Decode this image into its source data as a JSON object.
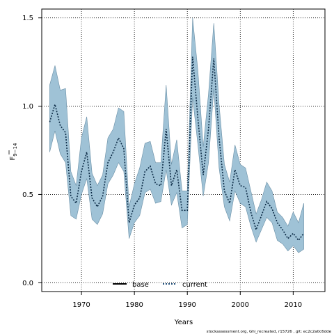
{
  "chart_data": {
    "type": "line",
    "xlabel": "Years",
    "ylabel": "F",
    "ylabel_sub": "9−14",
    "xlim": [
      1962.5,
      2016
    ],
    "ylim": [
      -0.05,
      1.55
    ],
    "xticks": [
      1970,
      1980,
      1990,
      2000,
      2010
    ],
    "yticks": [
      0.0,
      0.5,
      1.0,
      1.5
    ],
    "ytick_labels": [
      "0.0",
      "0.5",
      "1.0",
      "1.5"
    ],
    "grid": true,
    "legend_placement": "bottom-center",
    "x": [
      1964,
      1965,
      1966,
      1967,
      1968,
      1969,
      1970,
      1971,
      1972,
      1973,
      1974,
      1975,
      1976,
      1977,
      1978,
      1979,
      1980,
      1981,
      1982,
      1983,
      1984,
      1985,
      1986,
      1987,
      1988,
      1989,
      1990,
      1991,
      1992,
      1993,
      1994,
      1995,
      1996,
      1997,
      1998,
      1999,
      2000,
      2001,
      2002,
      2003,
      2004,
      2005,
      2006,
      2007,
      2008,
      2009,
      2010,
      2011,
      2012
    ],
    "series": [
      {
        "name": "base",
        "values": [
          0.91,
          1.01,
          0.89,
          0.85,
          0.49,
          0.45,
          0.63,
          0.74,
          0.48,
          0.43,
          0.49,
          0.68,
          0.74,
          0.82,
          0.76,
          0.34,
          0.44,
          0.48,
          0.63,
          0.66,
          0.56,
          0.55,
          0.87,
          0.55,
          0.64,
          0.41,
          0.41,
          1.28,
          0.93,
          0.61,
          0.87,
          1.27,
          0.82,
          0.52,
          0.45,
          0.64,
          0.55,
          0.54,
          0.4,
          0.3,
          0.38,
          0.46,
          0.42,
          0.34,
          0.3,
          0.25,
          0.28,
          0.24,
          0.28
        ],
        "color": "#000000"
      },
      {
        "name": "current",
        "values": [
          0.91,
          1.01,
          0.89,
          0.85,
          0.49,
          0.45,
          0.63,
          0.74,
          0.48,
          0.43,
          0.49,
          0.68,
          0.74,
          0.82,
          0.76,
          0.34,
          0.44,
          0.48,
          0.63,
          0.66,
          0.56,
          0.55,
          0.87,
          0.55,
          0.64,
          0.41,
          0.41,
          1.28,
          0.93,
          0.61,
          0.87,
          1.27,
          0.82,
          0.52,
          0.45,
          0.64,
          0.55,
          0.54,
          0.4,
          0.3,
          0.38,
          0.46,
          0.42,
          0.34,
          0.3,
          0.25,
          0.28,
          0.24,
          0.28
        ],
        "color": "#1f4e79",
        "upper": [
          1.12,
          1.23,
          1.09,
          1.1,
          0.63,
          0.55,
          0.82,
          0.94,
          0.62,
          0.55,
          0.61,
          0.82,
          0.87,
          0.99,
          0.97,
          0.43,
          0.56,
          0.65,
          0.79,
          0.8,
          0.68,
          0.68,
          1.12,
          0.67,
          0.81,
          0.52,
          0.52,
          1.5,
          1.2,
          0.77,
          1.07,
          1.47,
          1.01,
          0.67,
          0.57,
          0.78,
          0.67,
          0.65,
          0.52,
          0.39,
          0.47,
          0.57,
          0.52,
          0.4,
          0.37,
          0.32,
          0.4,
          0.34,
          0.45
        ],
        "lower": [
          0.74,
          0.86,
          0.73,
          0.68,
          0.38,
          0.36,
          0.5,
          0.59,
          0.36,
          0.33,
          0.39,
          0.56,
          0.61,
          0.68,
          0.63,
          0.25,
          0.34,
          0.38,
          0.51,
          0.53,
          0.45,
          0.46,
          0.64,
          0.44,
          0.51,
          0.31,
          0.33,
          1.05,
          0.78,
          0.49,
          0.68,
          1.1,
          0.65,
          0.43,
          0.35,
          0.52,
          0.45,
          0.43,
          0.32,
          0.23,
          0.3,
          0.37,
          0.34,
          0.24,
          0.22,
          0.18,
          0.21,
          0.17,
          0.19
        ]
      }
    ],
    "band_color": "#9fc2d6",
    "band_stroke": "#6a8fa6"
  },
  "footer_text": "stockassessment.org, Ghi_recreated, r15726 , git: ec2c2a0c6dde"
}
